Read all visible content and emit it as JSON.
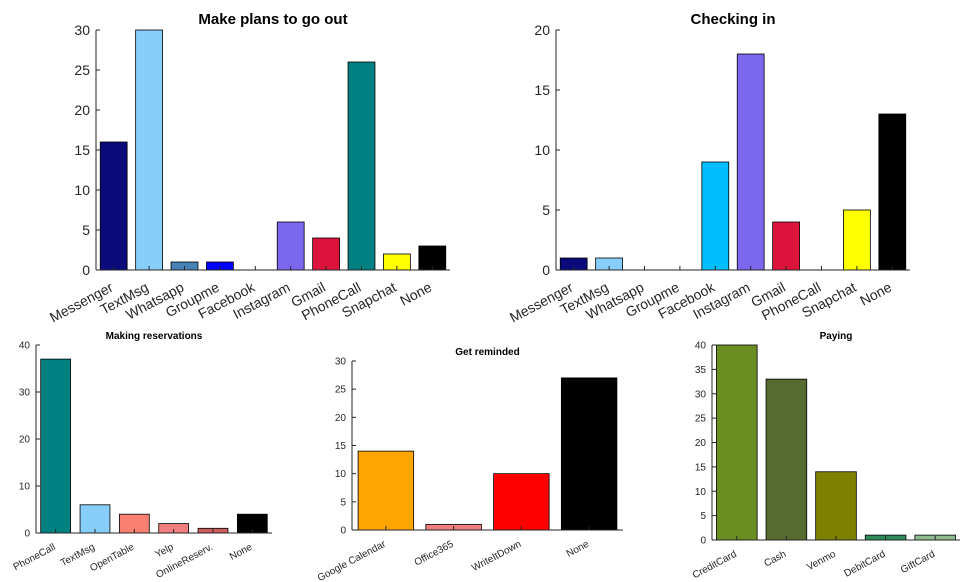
{
  "chart_data": [
    {
      "type": "bar",
      "title": "Make plans to go out",
      "categories": [
        "Messenger",
        "TextMsg",
        "Whatsapp",
        "Groupme",
        "Facebook",
        "Instagram",
        "Gmail",
        "PhoneCall",
        "Snapchat",
        "None"
      ],
      "values": [
        16,
        30,
        1,
        1,
        0,
        6,
        4,
        26,
        2,
        3
      ],
      "colors": [
        "#0a0a7a",
        "#87cefa",
        "#4682b4",
        "#0000ff",
        "#00bfff",
        "#7b68ee",
        "#dc143c",
        "#008080",
        "#ffff00",
        "#000000"
      ],
      "ylim": [
        0,
        30
      ],
      "yticks": [
        0,
        5,
        10,
        15,
        20,
        25,
        30
      ],
      "xlabel": "",
      "ylabel": "",
      "grid": false
    },
    {
      "type": "bar",
      "title": "Checking in",
      "categories": [
        "Messenger",
        "TextMsg",
        "Whatsapp",
        "Groupme",
        "Facebook",
        "Instagram",
        "Gmail",
        "PhoneCall",
        "Snapchat",
        "None"
      ],
      "values": [
        1,
        1,
        0,
        0,
        9,
        18,
        4,
        0,
        5,
        13
      ],
      "colors": [
        "#0a0a7a",
        "#87cefa",
        "#4682b4",
        "#0000ff",
        "#00bfff",
        "#7b68ee",
        "#dc143c",
        "#008080",
        "#ffff00",
        "#000000"
      ],
      "ylim": [
        0,
        20
      ],
      "yticks": [
        0,
        5,
        10,
        15,
        20
      ],
      "xlabel": "",
      "ylabel": "",
      "grid": false
    },
    {
      "type": "bar",
      "title": "Making reservations",
      "categories": [
        "PhoneCall",
        "TextMsg",
        "OpenTable",
        "Yelp",
        "OnlineReserv.",
        "None"
      ],
      "values": [
        37,
        6,
        4,
        2,
        1,
        4
      ],
      "colors": [
        "#008080",
        "#87cefa",
        "#fa8072",
        "#f08080",
        "#cd5c5c",
        "#000000"
      ],
      "ylim": [
        0,
        40
      ],
      "yticks": [
        0,
        10,
        20,
        30,
        40
      ],
      "xlabel": "",
      "ylabel": "",
      "grid": false
    },
    {
      "type": "bar",
      "title": "Get reminded",
      "categories": [
        "Google Calendar",
        "Office365",
        "WriteItDown",
        "None"
      ],
      "values": [
        14,
        1,
        10,
        27
      ],
      "colors": [
        "#ffa500",
        "#f08080",
        "#ff0000",
        "#000000"
      ],
      "ylim": [
        0,
        30
      ],
      "yticks": [
        0,
        5,
        10,
        15,
        20,
        25,
        30
      ],
      "xlabel": "",
      "ylabel": "",
      "grid": false
    },
    {
      "type": "bar",
      "title": "Paying",
      "categories": [
        "CreditCard",
        "Cash",
        "Venmo",
        "DebitCard",
        "GiftCard"
      ],
      "values": [
        40,
        33,
        14,
        1,
        1
      ],
      "colors": [
        "#6b8e23",
        "#556b2f",
        "#808000",
        "#2e8b57",
        "#8fbc8f"
      ],
      "ylim": [
        0,
        40
      ],
      "yticks": [
        0,
        5,
        10,
        15,
        20,
        25,
        30,
        35,
        40
      ],
      "xlabel": "",
      "ylabel": "",
      "grid": false
    }
  ]
}
